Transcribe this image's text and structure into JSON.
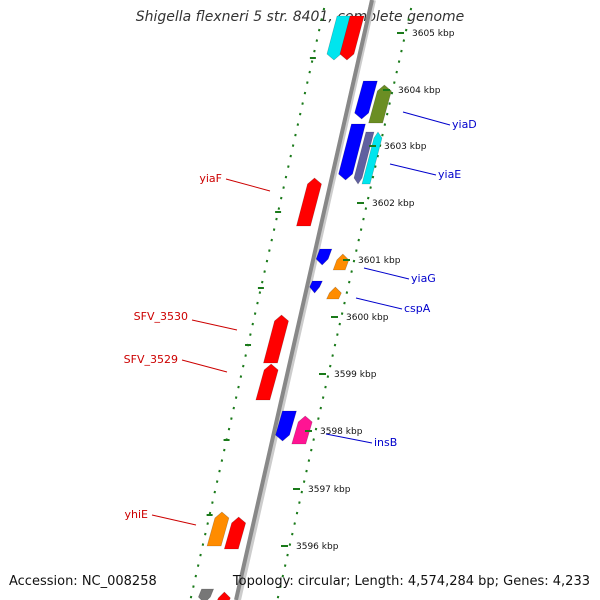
{
  "title": "Shigella flexneri 5 str. 8401, complete genome",
  "footer": {
    "accession": "Accession: NC_008258",
    "topology": "Topology: circular; Length: 4,574,284 bp; Genes: 4,233"
  },
  "colors": {
    "backbone": "#888888",
    "tick_track": "#1a7a1a",
    "forward_label": "#0000cc",
    "reverse_label": "#cc0000"
  },
  "scale_ticks": [
    {
      "kbp": 3605,
      "label": "3605 kbp"
    },
    {
      "kbp": 3604,
      "label": "3604 kbp"
    },
    {
      "kbp": 3603,
      "label": "3603 kbp"
    },
    {
      "kbp": 3602,
      "label": "3602 kbp"
    },
    {
      "kbp": 3601,
      "label": "3601 kbp"
    },
    {
      "kbp": 3600,
      "label": "3600 kbp"
    },
    {
      "kbp": 3599,
      "label": "3599 kbp"
    },
    {
      "kbp": 3598,
      "label": "3598 kbp"
    },
    {
      "kbp": 3597,
      "label": "3597 kbp"
    },
    {
      "kbp": 3596,
      "label": "3596 kbp"
    }
  ],
  "genes": [
    {
      "name": "yiaD",
      "strand": "forward",
      "color": "#6b8e23"
    },
    {
      "name": "yiaE",
      "strand": "forward",
      "color": "#00e5ee"
    },
    {
      "name": "yiaF",
      "strand": "reverse",
      "color": "#ff0000"
    },
    {
      "name": "yiaG",
      "strand": "forward",
      "color": "#ff8c00"
    },
    {
      "name": "cspA",
      "strand": "forward",
      "color": "#ff8c00"
    },
    {
      "name": "SFV_3530",
      "strand": "reverse",
      "color": "#ff0000"
    },
    {
      "name": "SFV_3529",
      "strand": "reverse",
      "color": "#ff0000"
    },
    {
      "name": "insB",
      "strand": "forward",
      "color": "#ff1493"
    },
    {
      "name": "yhiE",
      "strand": "reverse",
      "color": "#ff8c00"
    }
  ]
}
